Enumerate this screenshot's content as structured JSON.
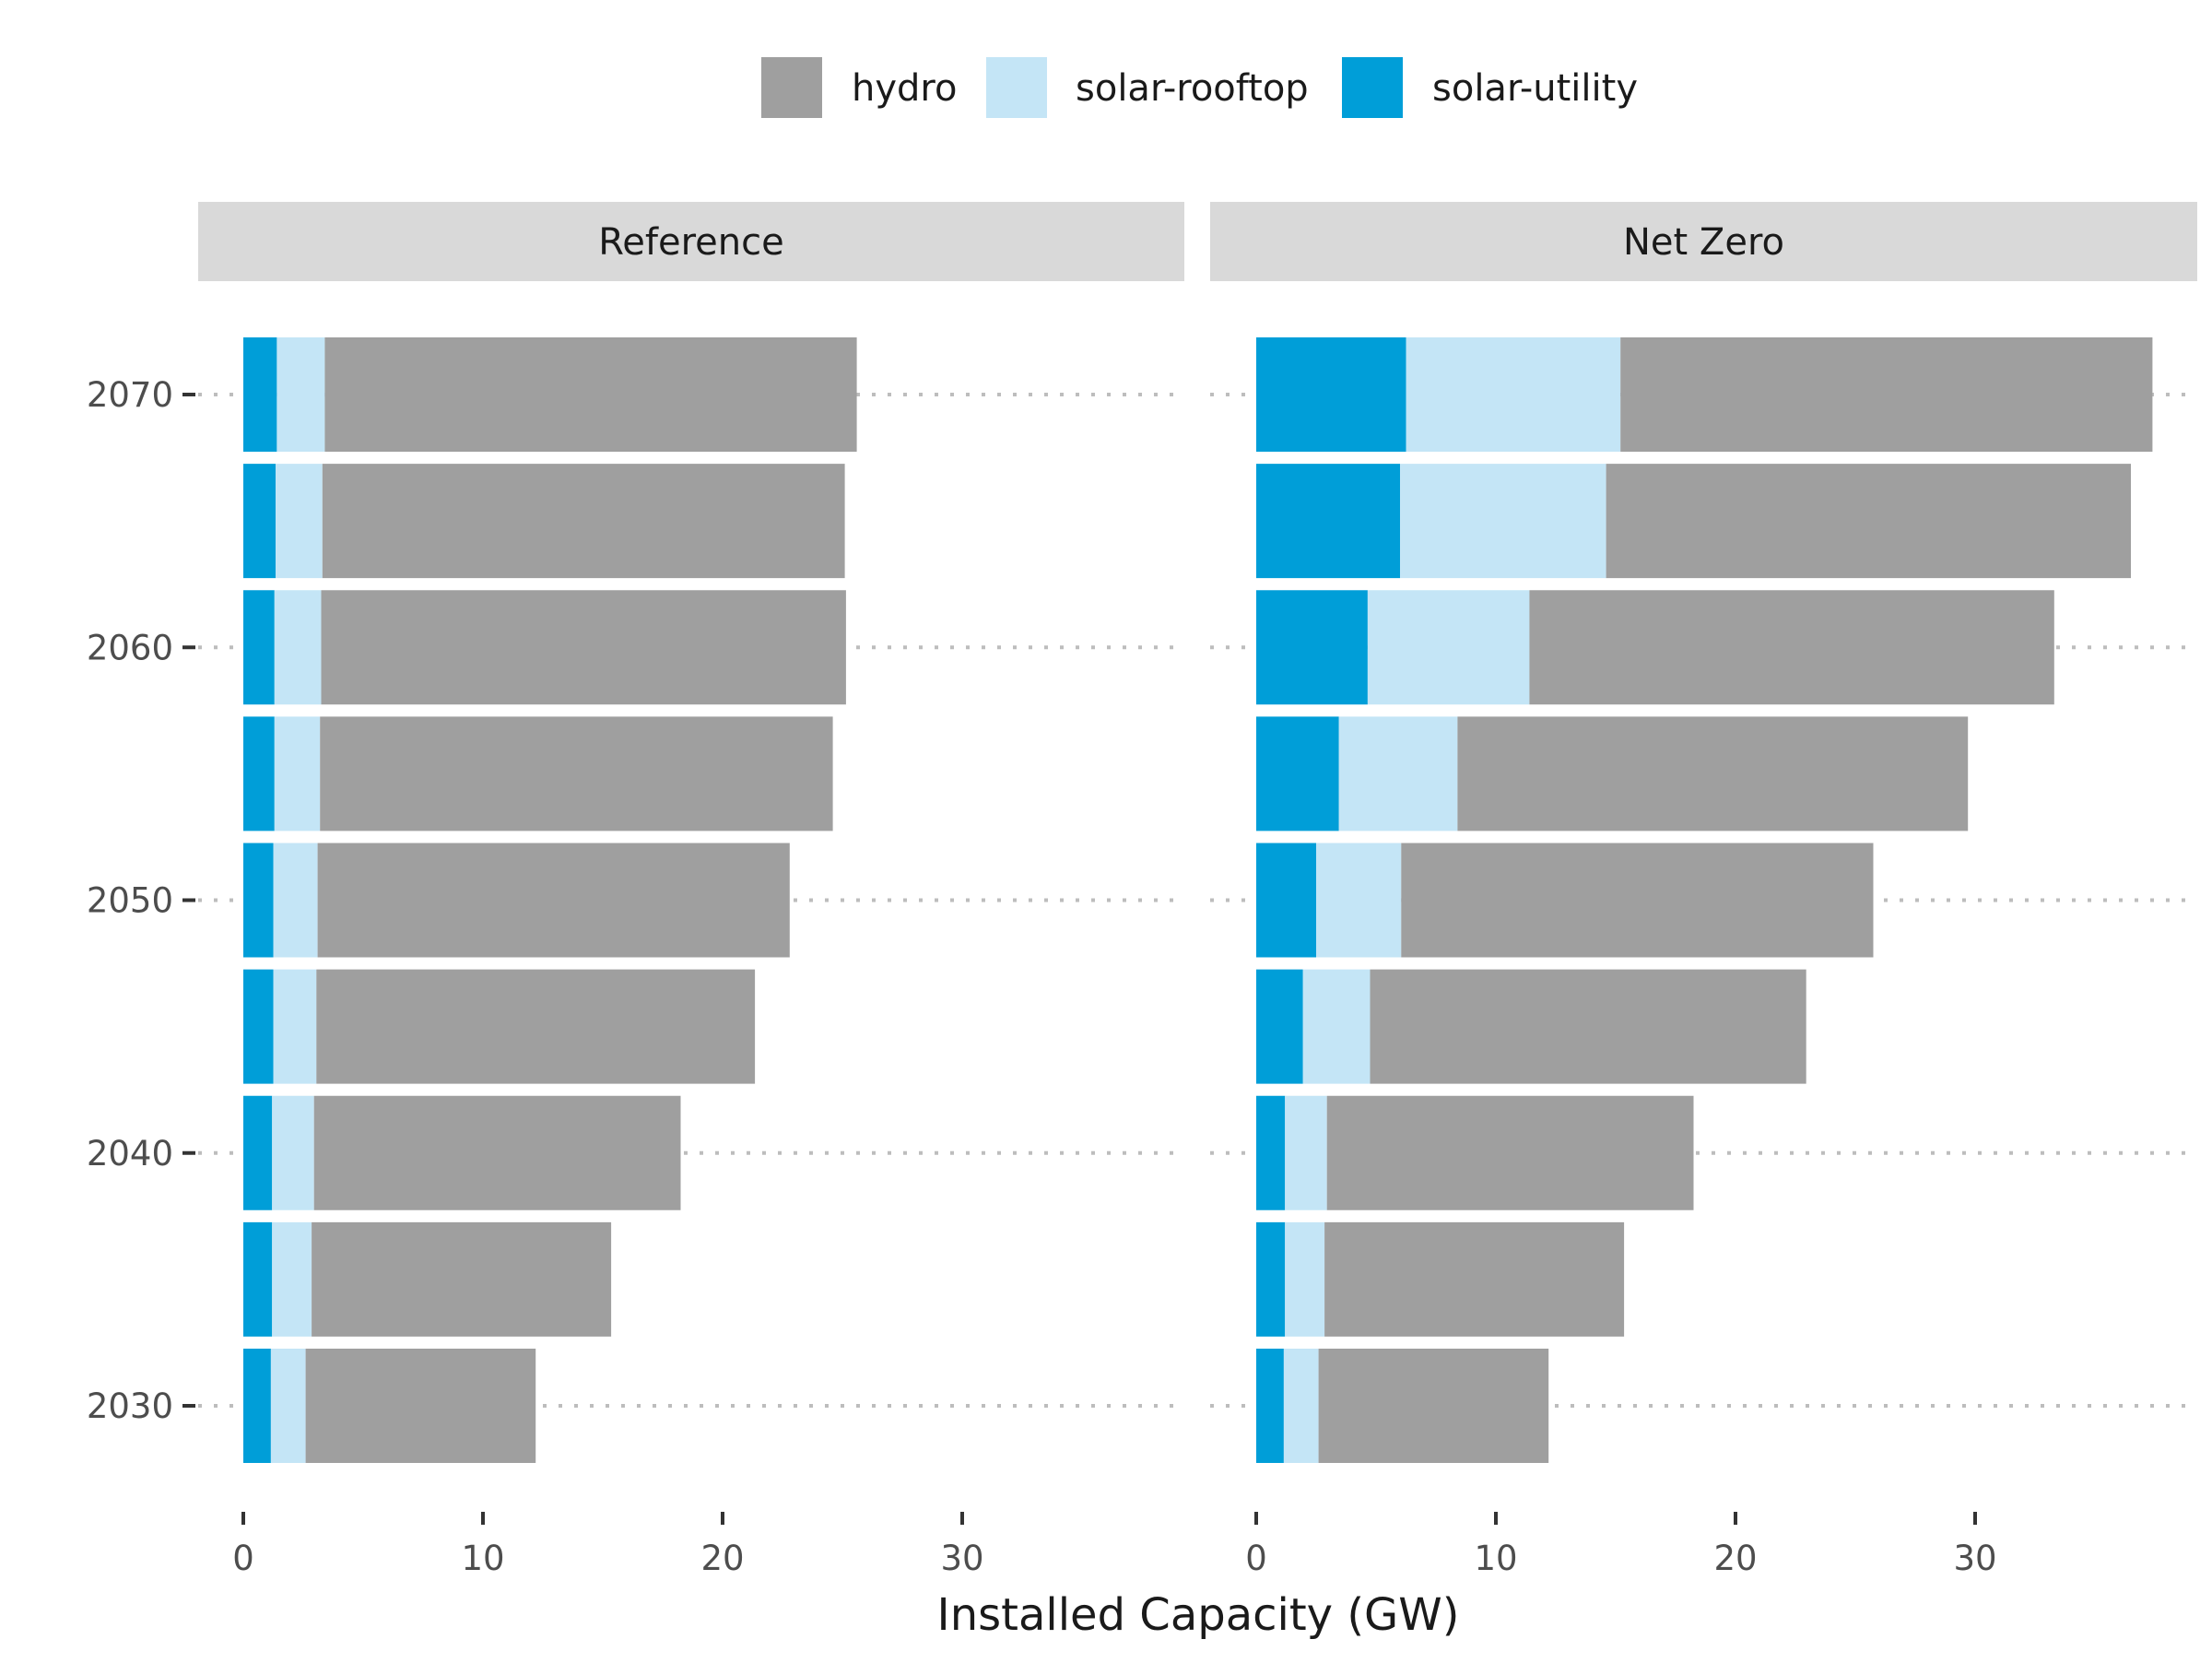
{
  "chart_data": {
    "type": "bar",
    "orientation": "horizontal",
    "stacked": true,
    "xlabel": "Installed Capacity (GW)",
    "ylabel": "",
    "xlim": [
      0,
      37.5
    ],
    "x_ticks": [
      0,
      10,
      20,
      30
    ],
    "years": [
      2030,
      2035,
      2040,
      2045,
      2050,
      2055,
      2060,
      2065,
      2070
    ],
    "y_tick_labels": [
      "2030",
      "2040",
      "2050",
      "2060",
      "2070"
    ],
    "legend_position": "top",
    "grid": "dotted gridlines at labelled years",
    "series": [
      {
        "name": "solar-utility",
        "color": "#009ed8"
      },
      {
        "name": "solar-rooftop",
        "color": "#c4e5f6"
      },
      {
        "name": "hydro",
        "color": "#9f9f9f"
      }
    ],
    "legend_order": [
      "hydro",
      "solar-rooftop",
      "solar-utility"
    ],
    "facets": [
      {
        "label": "Reference",
        "values": {
          "solar-utility": [
            1.15,
            1.2,
            1.2,
            1.25,
            1.25,
            1.3,
            1.3,
            1.35,
            1.4
          ],
          "solar-rooftop": [
            1.45,
            1.65,
            1.75,
            1.8,
            1.85,
            1.9,
            1.95,
            1.95,
            2.0
          ],
          "hydro": [
            9.6,
            12.5,
            15.3,
            18.3,
            19.7,
            21.4,
            21.9,
            21.8,
            22.2
          ]
        }
      },
      {
        "label": "Net Zero",
        "values": {
          "solar-utility": [
            1.15,
            1.2,
            1.2,
            1.95,
            2.5,
            3.45,
            4.65,
            6.0,
            6.25
          ],
          "solar-rooftop": [
            1.45,
            1.65,
            1.75,
            2.8,
            3.55,
            4.95,
            6.75,
            8.6,
            8.95
          ],
          "hydro": [
            9.6,
            12.5,
            15.3,
            18.2,
            19.7,
            21.3,
            21.9,
            21.9,
            22.2
          ]
        }
      }
    ]
  }
}
